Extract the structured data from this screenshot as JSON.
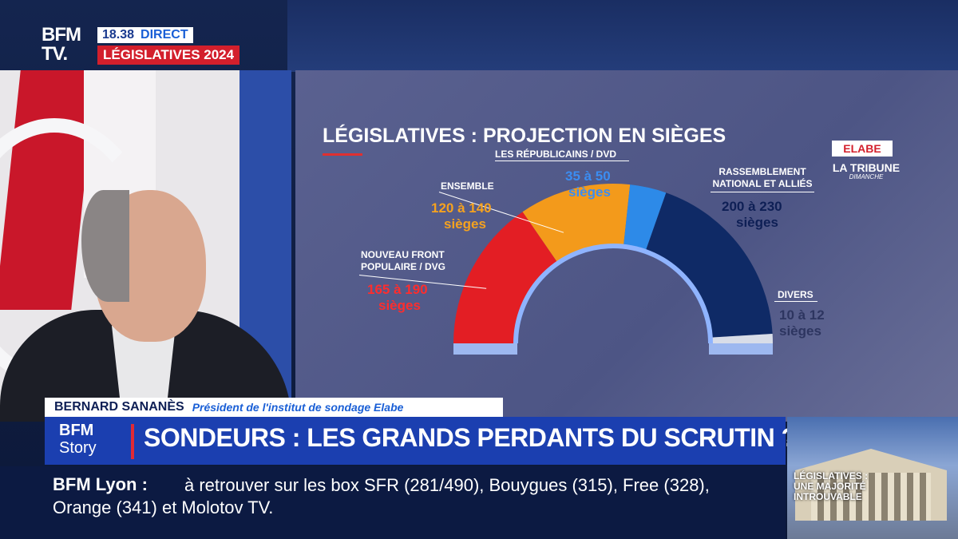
{
  "logo": {
    "line1": "BFM",
    "line2": "TV."
  },
  "header": {
    "time": "18.38",
    "live": "DIRECT",
    "program": "LÉGISLATIVES 2024"
  },
  "graphic": {
    "title": "LÉGISLATIVES : PROJECTION EN SIÈGES",
    "source_logo": "ELABE",
    "partner_line1": "LA TRIBUNE",
    "partner_line2": "DIMANCHE",
    "parties": [
      {
        "name_line1": "NOUVEAU FRONT",
        "name_line2": "POPULAIRE / DVG",
        "range": "165 à 190",
        "unit": "sièges",
        "color": "#e31e24",
        "low": 165,
        "high": 190
      },
      {
        "name_line1": "ENSEMBLE",
        "name_line2": "",
        "range": "120 à 140",
        "unit": "sièges",
        "color": "#f39a1b",
        "low": 120,
        "high": 140
      },
      {
        "name_line1": "LES RÉPUBLICAINS / DVD",
        "name_line2": "",
        "range": "35 à 50",
        "unit": "sièges",
        "color": "#2d8ae8",
        "low": 35,
        "high": 50
      },
      {
        "name_line1": "RASSEMBLEMENT",
        "name_line2": "NATIONAL ET ALLIÉS",
        "range": "200 à 230",
        "unit": "sièges",
        "color": "#0f2a66",
        "low": 200,
        "high": 230
      },
      {
        "name_line1": "DIVERS",
        "name_line2": "",
        "range": "10 à 12",
        "unit": "sièges",
        "color": "#d8dde8",
        "low": 10,
        "high": 12
      }
    ]
  },
  "lower_third": {
    "name": "BERNARD SANANÈS",
    "role": "Président de l'institut de sondage Elabe",
    "show_line1": "BFM",
    "show_line2": "Story",
    "headline": "SONDEURS : LES GRANDS PERDANTS DU SCRUTIN ?"
  },
  "ticker": {
    "label": "BFM Lyon :",
    "text": "à retrouver sur les box SFR (281/490), Bouygues (315), Free (328), Orange (341) et Molotov TV."
  },
  "thumbnail": {
    "caption": "LÉGISLATIVES : UNE MAJORITÉ INTROUVABLE"
  }
}
